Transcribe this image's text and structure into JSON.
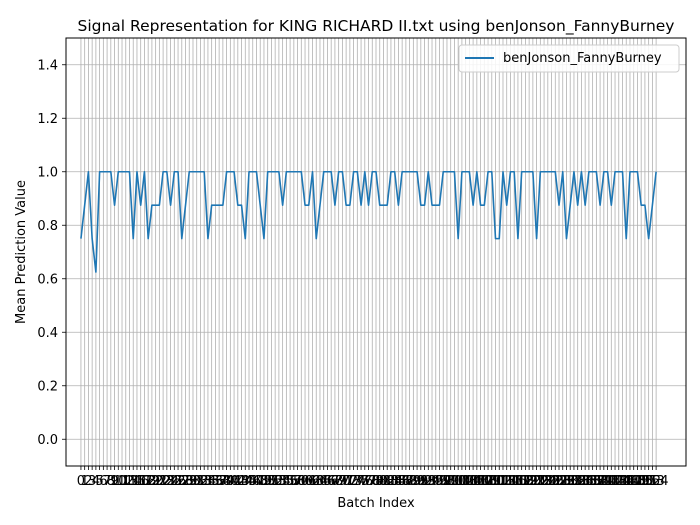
{
  "chart_data": {
    "type": "line",
    "title": "Signal Representation for KING RICHARD II.txt using benJonson_FannyBurney",
    "xlabel": "Batch Index",
    "ylabel": "Mean Prediction Value",
    "ylim": [
      -0.1,
      1.5
    ],
    "xlim": [
      -4,
      162
    ],
    "yticks": [
      0.0,
      0.2,
      0.4,
      0.6,
      0.8,
      1.0,
      1.2,
      1.4
    ],
    "grid": true,
    "legend_position": "upper right",
    "series": [
      {
        "name": "benJonson_FannyBurney",
        "color": "#1f77b4",
        "values": [
          0.75,
          0.875,
          1.0,
          0.75,
          0.625,
          1.0,
          1.0,
          1.0,
          1.0,
          0.875,
          1.0,
          1.0,
          1.0,
          1.0,
          0.75,
          1.0,
          0.875,
          1.0,
          0.75,
          0.875,
          0.875,
          0.875,
          1.0,
          1.0,
          0.875,
          1.0,
          1.0,
          0.75,
          0.875,
          1.0,
          1.0,
          1.0,
          1.0,
          1.0,
          0.75,
          0.875,
          0.875,
          0.875,
          0.875,
          1.0,
          1.0,
          1.0,
          0.875,
          0.875,
          0.75,
          1.0,
          1.0,
          1.0,
          0.875,
          0.75,
          1.0,
          1.0,
          1.0,
          1.0,
          0.875,
          1.0,
          1.0,
          1.0,
          1.0,
          1.0,
          0.875,
          0.875,
          1.0,
          0.75,
          0.875,
          1.0,
          1.0,
          1.0,
          0.875,
          1.0,
          1.0,
          0.875,
          0.875,
          1.0,
          1.0,
          0.875,
          1.0,
          0.875,
          1.0,
          1.0,
          0.875,
          0.875,
          0.875,
          1.0,
          1.0,
          0.875,
          1.0,
          1.0,
          1.0,
          1.0,
          1.0,
          0.875,
          0.875,
          1.0,
          0.875,
          0.875,
          0.875,
          1.0,
          1.0,
          1.0,
          1.0,
          0.75,
          1.0,
          1.0,
          1.0,
          0.875,
          1.0,
          0.875,
          0.875,
          1.0,
          1.0,
          0.75,
          0.75,
          1.0,
          0.875,
          1.0,
          1.0,
          0.75,
          1.0,
          1.0,
          1.0,
          1.0,
          0.75,
          1.0,
          1.0,
          1.0,
          1.0,
          1.0,
          0.875,
          1.0,
          0.75,
          0.875,
          1.0,
          0.875,
          1.0,
          0.875,
          1.0,
          1.0,
          1.0,
          0.875,
          1.0,
          1.0,
          0.875,
          1.0,
          1.0,
          1.0,
          0.75,
          1.0,
          1.0,
          1.0,
          0.875,
          0.875,
          0.75,
          0.875,
          1.0
        ]
      }
    ]
  }
}
